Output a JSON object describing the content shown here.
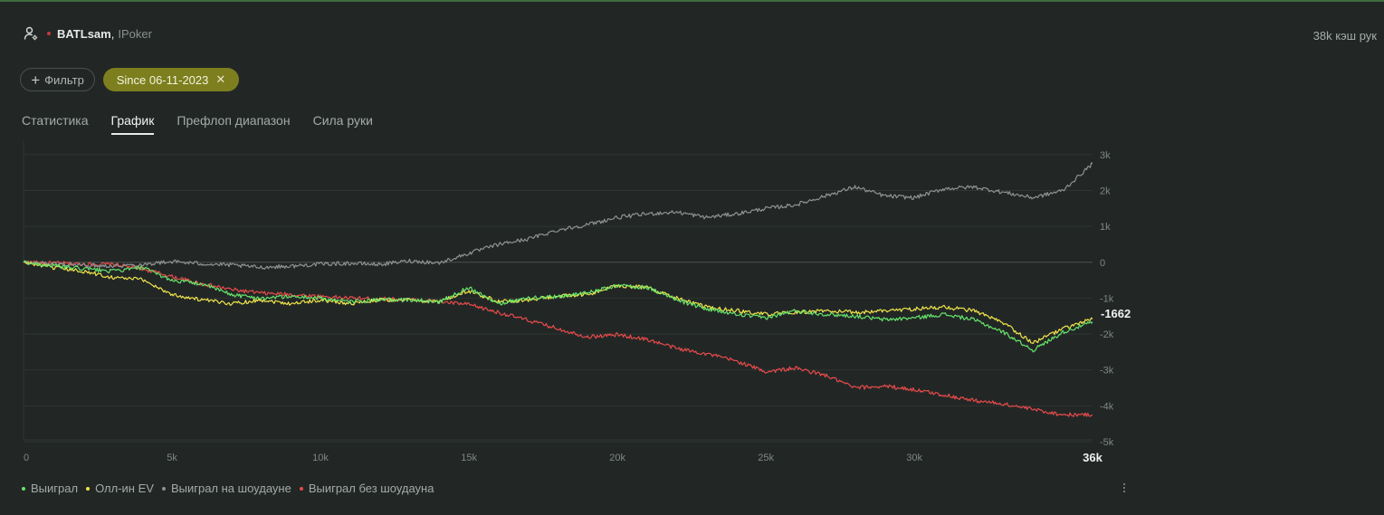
{
  "player": {
    "name": "BATLsam",
    "separator": ",",
    "site": "IPoker"
  },
  "hands_count": "38k кэш рук",
  "filters": {
    "add_label": "Фильтр",
    "active_chip": "Since 06-11-2023",
    "remove_symbol": "✕"
  },
  "tabs": [
    {
      "label": "Статистика",
      "active": false
    },
    {
      "label": "График",
      "active": true
    },
    {
      "label": "Префлоп диапазон",
      "active": false
    },
    {
      "label": "Сила руки",
      "active": false
    }
  ],
  "chart_data": {
    "type": "line",
    "x_unit": "hands",
    "xlim": [
      0,
      36000
    ],
    "ylim": [
      -5000,
      3000
    ],
    "x_ticks": [
      {
        "value": 0,
        "label": "0"
      },
      {
        "value": 5000,
        "label": "5k"
      },
      {
        "value": 10000,
        "label": "10k"
      },
      {
        "value": 15000,
        "label": "15k"
      },
      {
        "value": 20000,
        "label": "20k"
      },
      {
        "value": 25000,
        "label": "25k"
      },
      {
        "value": 30000,
        "label": "30k"
      }
    ],
    "x_end_label": "36k",
    "y_ticks": [
      {
        "value": 3000,
        "label": "3k"
      },
      {
        "value": 2000,
        "label": "2k"
      },
      {
        "value": 1000,
        "label": "1k"
      },
      {
        "value": 0,
        "label": "0"
      },
      {
        "value": -1000,
        "label": "-1k"
      },
      {
        "value": -2000,
        "label": "-2k"
      },
      {
        "value": -3000,
        "label": "-3k"
      },
      {
        "value": -4000,
        "label": "-4k"
      },
      {
        "value": -5000,
        "label": "-5k"
      }
    ],
    "end_value_label": "-1662",
    "end_value": -1662,
    "grid": true,
    "legend_position": "bottom-left",
    "series": [
      {
        "name": "Выиграл без шоудауна",
        "color": "#e84a4a",
        "points": [
          [
            0,
            0
          ],
          [
            1000,
            -20
          ],
          [
            2000,
            -50
          ],
          [
            3000,
            -60
          ],
          [
            4000,
            -180
          ],
          [
            5000,
            -400
          ],
          [
            6000,
            -600
          ],
          [
            7000,
            -760
          ],
          [
            8000,
            -860
          ],
          [
            9000,
            -900
          ],
          [
            10000,
            -950
          ],
          [
            11000,
            -1000
          ],
          [
            12000,
            -1020
          ],
          [
            13000,
            -1040
          ],
          [
            14000,
            -1100
          ],
          [
            15000,
            -1180
          ],
          [
            16000,
            -1400
          ],
          [
            17000,
            -1620
          ],
          [
            18000,
            -1850
          ],
          [
            19000,
            -2080
          ],
          [
            20000,
            -2020
          ],
          [
            21000,
            -2150
          ],
          [
            22000,
            -2400
          ],
          [
            23000,
            -2550
          ],
          [
            24000,
            -2750
          ],
          [
            25000,
            -3050
          ],
          [
            26000,
            -2950
          ],
          [
            27000,
            -3150
          ],
          [
            28000,
            -3500
          ],
          [
            29000,
            -3450
          ],
          [
            30000,
            -3550
          ],
          [
            31000,
            -3700
          ],
          [
            32000,
            -3850
          ],
          [
            33000,
            -3950
          ],
          [
            34000,
            -4100
          ],
          [
            35000,
            -4250
          ],
          [
            36000,
            -4250
          ]
        ]
      },
      {
        "name": "Выиграл на шоудауне",
        "color": "#8e9291",
        "points": [
          [
            0,
            0
          ],
          [
            1000,
            -40
          ],
          [
            2000,
            -80
          ],
          [
            3000,
            -100
          ],
          [
            4000,
            -60
          ],
          [
            5000,
            20
          ],
          [
            6000,
            -40
          ],
          [
            7000,
            -80
          ],
          [
            8000,
            -140
          ],
          [
            9000,
            -110
          ],
          [
            10000,
            -50
          ],
          [
            11000,
            -30
          ],
          [
            12000,
            -60
          ],
          [
            13000,
            40
          ],
          [
            14000,
            -20
          ],
          [
            15000,
            250
          ],
          [
            16000,
            500
          ],
          [
            17000,
            650
          ],
          [
            18000,
            900
          ],
          [
            19000,
            1050
          ],
          [
            20000,
            1250
          ],
          [
            21000,
            1350
          ],
          [
            22000,
            1400
          ],
          [
            23000,
            1250
          ],
          [
            24000,
            1350
          ],
          [
            25000,
            1500
          ],
          [
            26000,
            1600
          ],
          [
            27000,
            1850
          ],
          [
            28000,
            2100
          ],
          [
            29000,
            1850
          ],
          [
            30000,
            1800
          ],
          [
            31000,
            2050
          ],
          [
            32000,
            2100
          ],
          [
            33000,
            1950
          ],
          [
            34000,
            1800
          ],
          [
            35000,
            2000
          ],
          [
            36000,
            2750
          ]
        ]
      },
      {
        "name": "Олл-ин EV",
        "color": "#f0e44a",
        "points": [
          [
            0,
            0
          ],
          [
            1000,
            -150
          ],
          [
            2000,
            -250
          ],
          [
            3000,
            -420
          ],
          [
            4000,
            -480
          ],
          [
            5000,
            -900
          ],
          [
            6000,
            -1050
          ],
          [
            7000,
            -1150
          ],
          [
            8000,
            -1050
          ],
          [
            9000,
            -1150
          ],
          [
            10000,
            -1050
          ],
          [
            11000,
            -1150
          ],
          [
            12000,
            -1050
          ],
          [
            13000,
            -1050
          ],
          [
            14000,
            -1100
          ],
          [
            15000,
            -800
          ],
          [
            16000,
            -1100
          ],
          [
            17000,
            -1050
          ],
          [
            18000,
            -950
          ],
          [
            19000,
            -900
          ],
          [
            20000,
            -650
          ],
          [
            21000,
            -700
          ],
          [
            22000,
            -1000
          ],
          [
            23000,
            -1250
          ],
          [
            24000,
            -1350
          ],
          [
            25000,
            -1450
          ],
          [
            26000,
            -1400
          ],
          [
            27000,
            -1350
          ],
          [
            28000,
            -1400
          ],
          [
            29000,
            -1350
          ],
          [
            30000,
            -1300
          ],
          [
            31000,
            -1250
          ],
          [
            32000,
            -1350
          ],
          [
            33000,
            -1700
          ],
          [
            34000,
            -2250
          ],
          [
            35000,
            -1850
          ],
          [
            36000,
            -1580
          ]
        ]
      },
      {
        "name": "Выиграл",
        "color": "#66e36a",
        "points": [
          [
            0,
            0
          ],
          [
            1000,
            -100
          ],
          [
            2000,
            -180
          ],
          [
            3000,
            -250
          ],
          [
            4000,
            -150
          ],
          [
            5000,
            -500
          ],
          [
            6000,
            -600
          ],
          [
            7000,
            -900
          ],
          [
            8000,
            -1000
          ],
          [
            9000,
            -950
          ],
          [
            10000,
            -1000
          ],
          [
            11000,
            -1100
          ],
          [
            12000,
            -1050
          ],
          [
            13000,
            -1050
          ],
          [
            14000,
            -1100
          ],
          [
            15000,
            -700
          ],
          [
            16000,
            -1150
          ],
          [
            17000,
            -1000
          ],
          [
            18000,
            -950
          ],
          [
            19000,
            -850
          ],
          [
            20000,
            -650
          ],
          [
            21000,
            -700
          ],
          [
            22000,
            -1050
          ],
          [
            23000,
            -1300
          ],
          [
            24000,
            -1450
          ],
          [
            25000,
            -1550
          ],
          [
            26000,
            -1350
          ],
          [
            27000,
            -1450
          ],
          [
            28000,
            -1500
          ],
          [
            29000,
            -1600
          ],
          [
            30000,
            -1550
          ],
          [
            31000,
            -1450
          ],
          [
            32000,
            -1600
          ],
          [
            33000,
            -1950
          ],
          [
            34000,
            -2450
          ],
          [
            35000,
            -1950
          ],
          [
            36000,
            -1662
          ]
        ]
      }
    ]
  },
  "legend": [
    {
      "label": "Выиграл",
      "color": "#66e36a"
    },
    {
      "label": "Олл-ин EV",
      "color": "#f0e44a"
    },
    {
      "label": "Выиграл на шоудауне",
      "color": "#8e9291"
    },
    {
      "label": "Выиграл без шоудауна",
      "color": "#e84a4a"
    }
  ],
  "icons": {
    "player": "user-icon",
    "add_filter": "plus-icon",
    "remove_chip": "close-icon",
    "more": "more-vertical-icon"
  }
}
